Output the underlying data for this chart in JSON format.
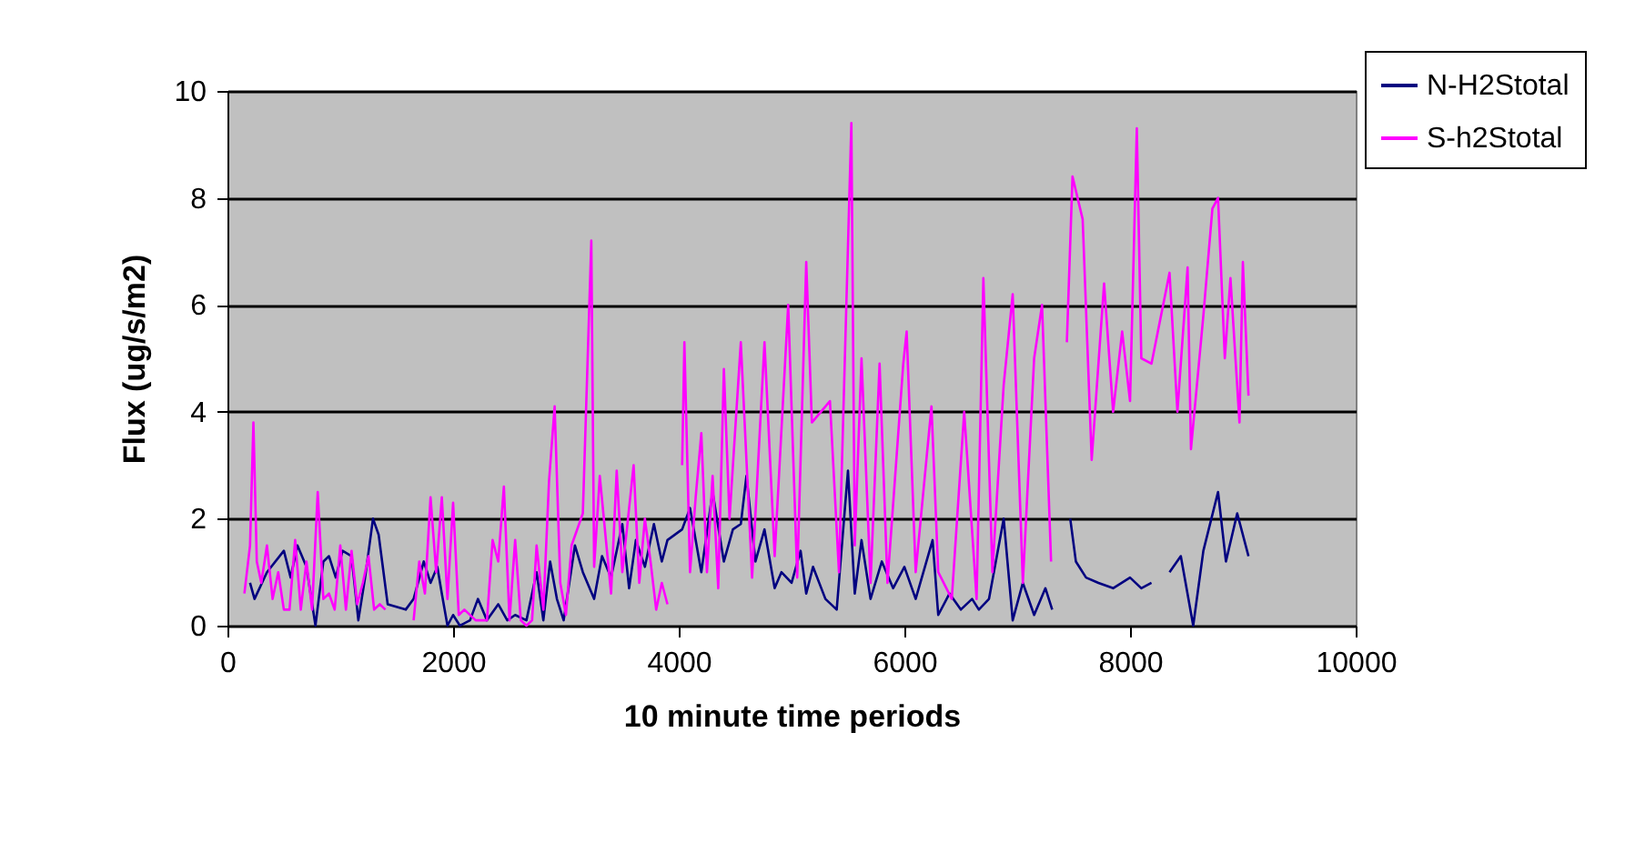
{
  "chart_data": {
    "type": "line",
    "xlabel": "10 minute time periods",
    "ylabel": "Flux (ug/s/m2)",
    "xlim": [
      0,
      10000
    ],
    "xticks": [
      0,
      2000,
      4000,
      6000,
      8000,
      10000
    ],
    "ylim": [
      0,
      10
    ],
    "yticks": [
      0,
      2,
      4,
      6,
      8,
      10
    ],
    "grid": "y",
    "legend": "top right",
    "line_style": "solid",
    "marker": "none",
    "series": [
      {
        "name": "N-H2Stotal",
        "color": "#000080",
        "x": [
          200,
          240,
          350,
          500,
          560,
          620,
          700,
          780,
          850,
          900,
          960,
          1020,
          1100,
          1160,
          1220,
          1290,
          1340,
          1420,
          1580,
          1650,
          1740,
          1800,
          1860,
          1900,
          1950,
          2000,
          2060,
          2150,
          2220,
          2300,
          2400,
          2480,
          2550,
          2650,
          2740,
          2800,
          2860,
          2920,
          2980,
          3080,
          3150,
          3250,
          3320,
          3400,
          3500,
          3560,
          3620,
          3700,
          3780,
          3850,
          3900,
          4030,
          4100,
          4200,
          4300,
          4400,
          4480,
          4550,
          4600,
          4680,
          4760,
          4850,
          4910,
          5000,
          5080,
          5130,
          5190,
          5300,
          5400,
          5500,
          5560,
          5620,
          5700,
          5800,
          5900,
          6000,
          6100,
          6250,
          6300,
          6400,
          6500,
          6600,
          6660,
          6750,
          6880,
          6960,
          7050,
          7150,
          7250,
          7310,
          7380,
          7470,
          7520,
          7610,
          7720,
          7850,
          8000,
          8100,
          8190,
          8300,
          8350,
          8450,
          8560,
          8650,
          8780,
          8850,
          8950,
          9050
        ],
        "values": [
          0.8,
          0.5,
          1.0,
          1.4,
          0.9,
          1.5,
          1.1,
          0.0,
          1.2,
          1.3,
          0.9,
          1.4,
          1.3,
          0.1,
          0.9,
          2.0,
          1.7,
          0.4,
          0.3,
          0.5,
          1.2,
          0.8,
          1.1,
          0.6,
          0.0,
          0.2,
          0.0,
          0.1,
          0.5,
          0.1,
          0.4,
          0.1,
          0.2,
          0.1,
          1.0,
          0.1,
          1.2,
          0.5,
          0.1,
          1.5,
          1.0,
          0.5,
          1.3,
          0.9,
          1.9,
          0.7,
          1.6,
          1.1,
          1.9,
          1.2,
          1.6,
          1.8,
          2.2,
          1.0,
          2.5,
          1.2,
          1.8,
          1.9,
          2.8,
          1.2,
          1.8,
          0.7,
          1.0,
          0.8,
          1.4,
          0.6,
          1.1,
          0.5,
          0.3,
          2.9,
          0.6,
          1.6,
          0.5,
          1.2,
          0.7,
          1.1,
          0.5,
          1.6,
          0.2,
          0.6,
          0.3,
          0.5,
          0.3,
          0.5,
          2.0,
          0.1,
          0.8,
          0.2,
          0.7,
          0.3,
          null,
          2.0,
          1.2,
          0.9,
          0.8,
          0.7,
          0.9,
          0.7,
          0.8,
          null,
          1.0,
          1.3,
          0.0,
          1.4,
          2.5,
          1.2,
          2.1,
          1.3
        ]
      },
      {
        "name": "S-h2Stotal",
        "color": "#ff00ff",
        "x": [
          150,
          200,
          230,
          260,
          300,
          350,
          400,
          450,
          500,
          550,
          600,
          650,
          700,
          750,
          800,
          850,
          900,
          950,
          1000,
          1050,
          1100,
          1150,
          1200,
          1250,
          1300,
          1350,
          1400,
          1500,
          1650,
          1700,
          1750,
          1800,
          1850,
          1900,
          1950,
          2000,
          2050,
          2100,
          2200,
          2300,
          2350,
          2400,
          2450,
          2500,
          2550,
          2600,
          2650,
          2700,
          2740,
          2800,
          2850,
          2900,
          2950,
          3000,
          3050,
          3150,
          3225,
          3250,
          3300,
          3400,
          3450,
          3500,
          3600,
          3650,
          3700,
          3750,
          3800,
          3850,
          3900,
          3950,
          4030,
          4050,
          4100,
          4150,
          4200,
          4250,
          4300,
          4350,
          4400,
          4450,
          4550,
          4650,
          4760,
          4850,
          4970,
          5050,
          5130,
          5180,
          5340,
          5420,
          5530,
          5560,
          5620,
          5700,
          5780,
          5850,
          5990,
          6020,
          6100,
          6240,
          6300,
          6420,
          6530,
          6640,
          6700,
          6780,
          6880,
          6960,
          7050,
          7150,
          7220,
          7300,
          7350,
          7440,
          7490,
          7580,
          7660,
          7770,
          7850,
          7930,
          8000,
          8060,
          8100,
          8190,
          8350,
          8420,
          8510,
          8540,
          8650,
          8730,
          8780,
          8840,
          8890,
          8970,
          9000,
          9050
        ],
        "values": [
          0.6,
          1.5,
          3.8,
          1.2,
          0.8,
          1.5,
          0.5,
          1.0,
          0.3,
          0.3,
          1.6,
          0.3,
          1.2,
          0.3,
          2.5,
          0.5,
          0.6,
          0.3,
          1.5,
          0.3,
          1.4,
          0.4,
          0.8,
          1.3,
          0.3,
          0.4,
          0.3,
          null,
          0.1,
          1.2,
          0.6,
          2.4,
          1.0,
          2.4,
          0.5,
          2.3,
          0.2,
          0.3,
          0.1,
          0.1,
          1.6,
          1.2,
          2.6,
          0.1,
          1.6,
          0.1,
          0.0,
          0.1,
          1.5,
          0.3,
          2.7,
          4.1,
          0.8,
          0.2,
          1.5,
          2.1,
          7.2,
          1.1,
          2.8,
          0.6,
          2.9,
          1.0,
          3.0,
          0.8,
          2.0,
          1.2,
          0.3,
          0.8,
          0.4,
          null,
          3.0,
          5.3,
          1.0,
          2.4,
          3.6,
          1.0,
          2.8,
          0.7,
          4.8,
          2.0,
          5.3,
          0.9,
          5.3,
          1.3,
          6.0,
          0.9,
          6.8,
          3.8,
          4.2,
          1.0,
          9.4,
          1.5,
          5.0,
          0.8,
          4.9,
          0.8,
          4.9,
          5.5,
          1.0,
          4.1,
          1.0,
          0.5,
          4.0,
          0.5,
          6.5,
          1.0,
          4.5,
          6.2,
          0.8,
          5.0,
          6.0,
          1.2,
          null,
          5.3,
          8.4,
          7.6,
          3.1,
          6.4,
          4.0,
          5.5,
          4.2,
          9.3,
          5.0,
          4.9,
          6.6,
          4.0,
          6.7,
          3.3,
          5.8,
          7.8,
          8.0,
          5.0,
          6.5,
          3.8,
          6.8,
          4.3
        ]
      }
    ]
  }
}
